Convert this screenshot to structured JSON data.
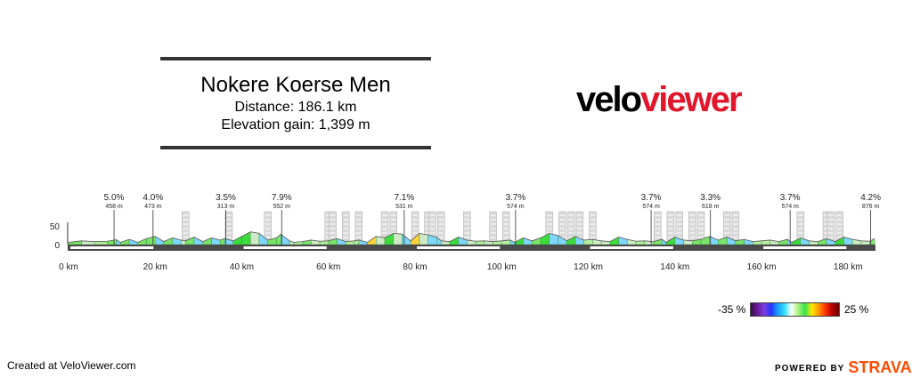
{
  "header": {
    "title": "Nokere Koerse Men",
    "distance": "Distance: 186.1 km",
    "elevation_gain": "Elevation gain: 1,399 m"
  },
  "logo": {
    "part1": "velo",
    "part2": "viewer"
  },
  "legend": {
    "low_label": "-35 %",
    "high_label": "25 %"
  },
  "footer": {
    "created": "Created at VeloViewer.com",
    "powered": "POWERED BY",
    "brand": "STRAVA"
  },
  "chart_data": {
    "type": "area",
    "xlabel": "",
    "ylabel": "",
    "x_unit": "km",
    "xlim": [
      0,
      186.1
    ],
    "ylim": [
      0,
      50
    ],
    "y_ticks": [
      0,
      50
    ],
    "x_ticks": [
      0,
      20,
      40,
      60,
      80,
      100,
      120,
      140,
      160,
      180
    ],
    "x_tick_labels": [
      "0 km",
      "20 km",
      "40 km",
      "60 km",
      "80 km",
      "100 km",
      "120 km",
      "140 km",
      "160 km",
      "180 km"
    ],
    "profile": {
      "x": [
        0,
        3,
        6,
        9,
        11,
        12,
        14,
        16,
        18,
        20,
        22,
        24,
        26,
        27,
        29,
        31,
        33,
        35,
        36,
        38,
        40,
        42,
        44,
        46,
        48,
        49,
        51,
        52,
        54,
        56,
        58,
        60,
        62,
        64,
        66,
        67,
        69,
        71,
        73,
        75,
        77,
        79,
        81,
        83,
        85,
        86,
        88,
        90,
        92,
        94,
        96,
        98,
        100,
        102,
        103,
        105,
        107,
        109,
        111,
        113,
        115,
        117,
        119,
        121,
        123,
        125,
        127,
        129,
        131,
        133,
        135,
        137,
        138,
        140,
        142,
        144,
        146,
        148,
        150,
        152,
        154,
        156,
        158,
        160,
        162,
        164,
        166,
        167,
        169,
        171,
        173,
        175,
        177,
        179,
        181,
        183,
        185,
        186.1
      ],
      "y": [
        6,
        10,
        8,
        9,
        13,
        6,
        14,
        6,
        16,
        22,
        8,
        18,
        12,
        10,
        20,
        8,
        18,
        12,
        16,
        10,
        22,
        34,
        30,
        12,
        18,
        28,
        10,
        6,
        8,
        12,
        9,
        10,
        16,
        8,
        10,
        12,
        6,
        22,
        18,
        30,
        28,
        10,
        30,
        26,
        20,
        10,
        8,
        20,
        12,
        9,
        10,
        8,
        10,
        12,
        6,
        18,
        10,
        18,
        30,
        24,
        10,
        22,
        12,
        14,
        10,
        8,
        20,
        14,
        9,
        10,
        8,
        14,
        6,
        20,
        12,
        10,
        14,
        22,
        12,
        20,
        10,
        14,
        8,
        10,
        12,
        8,
        14,
        6,
        18,
        10,
        8,
        16,
        8,
        20,
        14,
        10,
        9,
        16
      ]
    },
    "climbs": [
      {
        "km": 10.5,
        "gradient": "5.0%",
        "length": "458 m"
      },
      {
        "km": 19.5,
        "gradient": "4.0%",
        "length": "473 m"
      },
      {
        "km": 36.3,
        "gradient": "3.5%",
        "length": "313 m"
      },
      {
        "km": 49.2,
        "gradient": "7.9%",
        "length": "552 m"
      },
      {
        "km": 77.5,
        "gradient": "7.1%",
        "length": "531 m"
      },
      {
        "km": 103.2,
        "gradient": "3.7%",
        "length": "574 m"
      },
      {
        "km": 134.5,
        "gradient": "3.7%",
        "length": "574 m"
      },
      {
        "km": 148.2,
        "gradient": "3.3%",
        "length": "618 m"
      },
      {
        "km": 166.6,
        "gradient": "3.7%",
        "length": "574 m"
      },
      {
        "km": 185.2,
        "gradient": "4.2%",
        "length": "876 m"
      }
    ],
    "sectors_km": [
      27,
      37,
      46,
      60,
      61,
      64,
      67,
      73,
      75,
      80,
      83,
      84,
      86,
      92,
      98,
      101,
      111,
      114,
      116,
      118,
      121,
      136,
      139,
      141,
      144,
      146,
      152,
      154,
      169,
      175,
      176,
      178
    ]
  },
  "colors": {
    "gradient_green": "#3ddc3d",
    "soft_green": "#b7eea2",
    "steep": "#ffd23a",
    "descent": "#7fd6ff"
  }
}
